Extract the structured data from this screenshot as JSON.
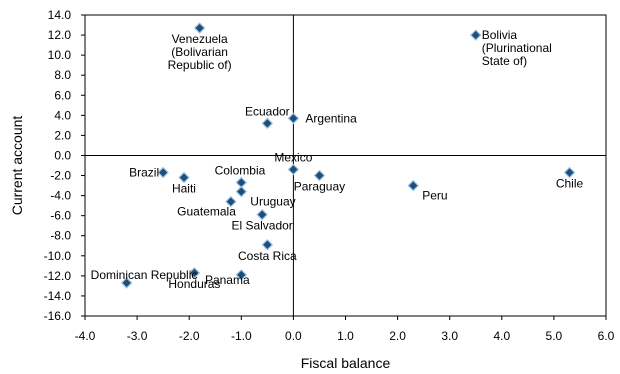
{
  "chart_data": {
    "type": "scatter",
    "xlabel": "Fiscal balance",
    "ylabel": "Current account",
    "xlim": [
      -4.0,
      6.0
    ],
    "ylim": [
      -16.0,
      14.0
    ],
    "x_ticks": [
      "-4.0",
      "-3.0",
      "-2.0",
      "-1.0",
      "0.0",
      "1.0",
      "2.0",
      "3.0",
      "4.0",
      "5.0",
      "6.0"
    ],
    "y_ticks": [
      "14.0",
      "12.0",
      "10.0",
      "8.0",
      "6.0",
      "4.0",
      "2.0",
      "0.0",
      "-2.0",
      "-4.0",
      "-6.0",
      "-8.0",
      "-10.0",
      "-12.0",
      "-14.0",
      "-16.0"
    ],
    "grid": false,
    "marker_color": "#1f4e79",
    "marker_edge": "#9dc3e6",
    "points": [
      {
        "label": [
          "Venezuela",
          "(Bolivarian",
          "Republic of)"
        ],
        "x": -1.8,
        "y": 12.7,
        "anchor": "middle",
        "side": "below"
      },
      {
        "label": [
          "Bolivia",
          "(Plurinational",
          "State of)"
        ],
        "x": 3.5,
        "y": 12.0,
        "anchor": "start",
        "side": "right-down"
      },
      {
        "label": [
          "Ecuador"
        ],
        "x": -0.5,
        "y": 3.2,
        "anchor": "middle",
        "side": "above"
      },
      {
        "label": [
          "Argentina"
        ],
        "x": 0.0,
        "y": 3.7,
        "anchor": "start",
        "side": "right"
      },
      {
        "label": [
          "Brazil"
        ],
        "x": -2.5,
        "y": -1.7,
        "anchor": "end",
        "side": "left"
      },
      {
        "label": [
          "Haiti"
        ],
        "x": -2.1,
        "y": -2.2,
        "anchor": "middle",
        "side": "below"
      },
      {
        "label": [
          "Colombia"
        ],
        "x": -1.0,
        "y": -2.7,
        "anchor": "end",
        "side": "above-left"
      },
      {
        "label": [
          "Mexico"
        ],
        "x": 0.0,
        "y": -1.4,
        "anchor": "middle",
        "side": "above"
      },
      {
        "label": [
          "Paraguay"
        ],
        "x": 0.5,
        "y": -2.0,
        "anchor": "middle",
        "side": "below"
      },
      {
        "label": [
          "Peru"
        ],
        "x": 2.3,
        "y": -3.0,
        "anchor": "start",
        "side": "below-right"
      },
      {
        "label": [
          "Chile"
        ],
        "x": 5.3,
        "y": -1.7,
        "anchor": "middle",
        "side": "below"
      },
      {
        "label": [
          "Guatemala"
        ],
        "x": -1.2,
        "y": -4.6,
        "anchor": "end",
        "side": "below-left"
      },
      {
        "label": [
          "Uruguay"
        ],
        "x": -1.0,
        "y": -3.6,
        "anchor": "start",
        "side": "below-right"
      },
      {
        "label": [
          "El Salvador"
        ],
        "x": -0.6,
        "y": -5.9,
        "anchor": "middle",
        "side": "below"
      },
      {
        "label": [
          "Costa Rica"
        ],
        "x": -0.5,
        "y": -8.9,
        "anchor": "middle",
        "side": "below"
      },
      {
        "label": [
          "Dominican Republic"
        ],
        "x": -3.2,
        "y": -12.7,
        "anchor": "start",
        "side": "above-right"
      },
      {
        "label": [
          "Honduras"
        ],
        "x": -1.9,
        "y": -11.7,
        "anchor": "middle",
        "side": "below"
      },
      {
        "label": [
          "Panama"
        ],
        "x": -1.0,
        "y": -11.9,
        "anchor": "middle",
        "side": "left-up"
      }
    ]
  }
}
